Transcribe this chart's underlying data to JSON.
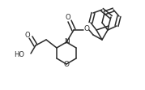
{
  "bg_color": "#ffffff",
  "line_color": "#2a2a2a",
  "line_width": 1.1,
  "figsize": [
    1.79,
    1.11
  ],
  "dpi": 100,
  "xlim": [
    0,
    179
  ],
  "ylim": [
    0,
    111
  ]
}
